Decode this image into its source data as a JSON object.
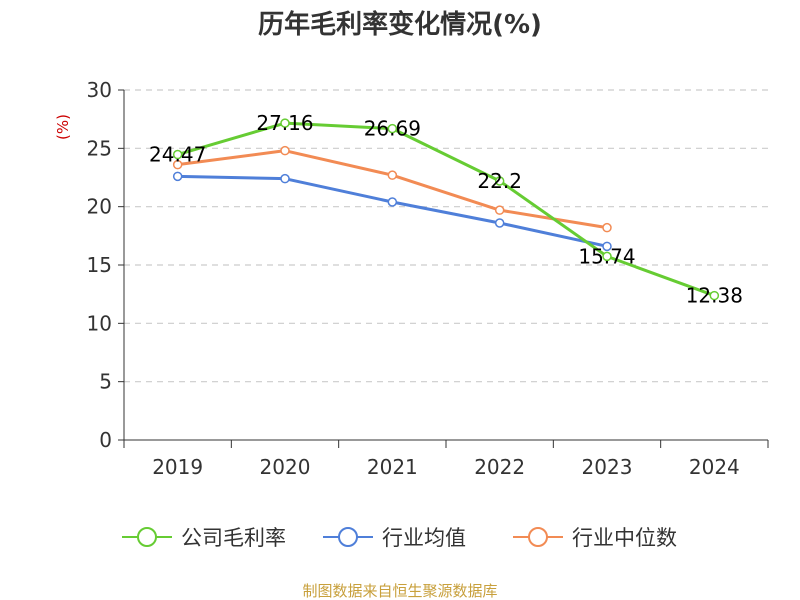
{
  "chart_data": {
    "type": "line",
    "title": "历年毛利率变化情况(%)",
    "ylabel": "(%)",
    "xlabel": "",
    "categories": [
      "2019",
      "2020",
      "2021",
      "2022",
      "2023",
      "2024"
    ],
    "ylim": [
      0,
      30
    ],
    "yticks": [
      0,
      5,
      10,
      15,
      20,
      25,
      30
    ],
    "grid": true,
    "legend_position": "bottom",
    "series": [
      {
        "name": "公司毛利率",
        "color": "#66cc33",
        "values": [
          24.47,
          27.16,
          26.69,
          22.2,
          15.74,
          12.38
        ],
        "labels": [
          "24.47",
          "27.16",
          "26.69",
          "22.2",
          "15.74",
          "12.38"
        ]
      },
      {
        "name": "行业均值",
        "color": "#4f7fd9",
        "values": [
          22.6,
          22.4,
          20.4,
          18.6,
          16.6,
          null
        ]
      },
      {
        "name": "行业中位数",
        "color": "#f28b54",
        "values": [
          23.6,
          24.8,
          22.7,
          19.7,
          18.2,
          null
        ]
      }
    ]
  },
  "source": "制图数据来自恒生聚源数据库"
}
